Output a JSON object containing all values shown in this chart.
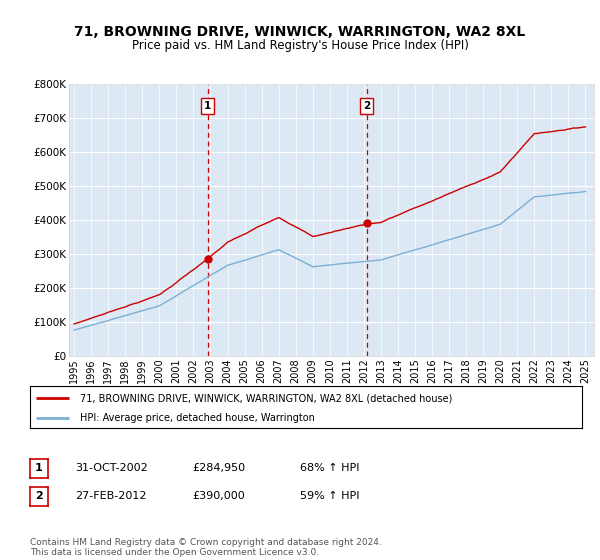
{
  "title": "71, BROWNING DRIVE, WINWICK, WARRINGTON, WA2 8XL",
  "subtitle": "Price paid vs. HM Land Registry's House Price Index (HPI)",
  "yticks": [
    0,
    100000,
    200000,
    300000,
    400000,
    500000,
    600000,
    700000,
    800000
  ],
  "ytick_labels": [
    "£0",
    "£100K",
    "£200K",
    "£300K",
    "£400K",
    "£500K",
    "£600K",
    "£700K",
    "£800K"
  ],
  "xlim_start": 1994.7,
  "xlim_end": 2025.5,
  "ylim": [
    0,
    800000
  ],
  "xticks": [
    1995,
    1996,
    1997,
    1998,
    1999,
    2000,
    2001,
    2002,
    2003,
    2004,
    2005,
    2006,
    2007,
    2008,
    2009,
    2010,
    2011,
    2012,
    2013,
    2014,
    2015,
    2016,
    2017,
    2018,
    2019,
    2020,
    2021,
    2022,
    2023,
    2024,
    2025
  ],
  "background_color": "#dce9f5",
  "outer_bg_color": "#ffffff",
  "red_line_color": "#cc0000",
  "blue_line_color": "#7bafd4",
  "vline_color": "#cc0000",
  "purchase1_x": 2002.833,
  "purchase1_y": 284950,
  "purchase1_label": "1",
  "purchase2_x": 2012.167,
  "purchase2_y": 390000,
  "purchase2_label": "2",
  "legend_entry1": "71, BROWNING DRIVE, WINWICK, WARRINGTON, WA2 8XL (detached house)",
  "legend_entry2": "HPI: Average price, detached house, Warrington",
  "table_row1": [
    "1",
    "31-OCT-2002",
    "£284,950",
    "68% ↑ HPI"
  ],
  "table_row2": [
    "2",
    "27-FEB-2012",
    "£390,000",
    "59% ↑ HPI"
  ],
  "footnote": "Contains HM Land Registry data © Crown copyright and database right 2024.\nThis data is licensed under the Open Government Licence v3.0."
}
